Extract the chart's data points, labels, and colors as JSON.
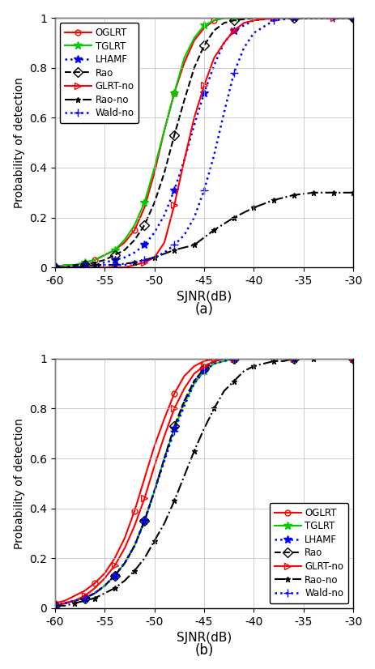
{
  "xlim": [
    -60,
    -30
  ],
  "ylim": [
    0,
    1
  ],
  "xlabel": "SJNR(dB)",
  "ylabel": "Probability of detection",
  "xticks": [
    -60,
    -55,
    -50,
    -45,
    -40,
    -35,
    -30
  ],
  "yticks": [
    0,
    0.2,
    0.4,
    0.6,
    0.8,
    1.0
  ],
  "yticklabels": [
    "0",
    "0.2",
    "0.4",
    "0.6",
    "0.8",
    "1"
  ],
  "subplot_a": {
    "OGLRT": {
      "x": [
        -60,
        -59,
        -58,
        -57,
        -56,
        -55,
        -54,
        -53,
        -52,
        -51,
        -50,
        -49,
        -48,
        -47,
        -46,
        -45,
        -44,
        -43,
        -42,
        -40,
        -38,
        -36,
        -34,
        -32,
        -30
      ],
      "y": [
        0.0,
        0.01,
        0.01,
        0.02,
        0.03,
        0.05,
        0.07,
        0.1,
        0.15,
        0.24,
        0.38,
        0.55,
        0.7,
        0.82,
        0.91,
        0.96,
        0.99,
        1.0,
        1.0,
        1.0,
        1.0,
        1.0,
        1.0,
        1.0,
        1.0
      ],
      "color": "#FF0000",
      "linestyle": "-",
      "marker": "o",
      "markerfacecolor": "none",
      "markersize": 5,
      "linewidth": 1.5,
      "markevery": 4
    },
    "TGLRT": {
      "x": [
        -60,
        -59,
        -58,
        -57,
        -56,
        -55,
        -54,
        -53,
        -52,
        -51,
        -50,
        -49,
        -48,
        -47,
        -46,
        -45,
        -44,
        -43,
        -42,
        -40,
        -38,
        -36,
        -34,
        -32,
        -30
      ],
      "y": [
        0.0,
        0.01,
        0.01,
        0.02,
        0.03,
        0.05,
        0.07,
        0.11,
        0.17,
        0.26,
        0.4,
        0.55,
        0.7,
        0.84,
        0.92,
        0.97,
        0.99,
        1.0,
        1.0,
        1.0,
        1.0,
        1.0,
        1.0,
        1.0,
        1.0
      ],
      "color": "#00CC00",
      "linestyle": "-",
      "marker": "*",
      "markerfacecolor": "#00CC00",
      "markersize": 7,
      "linewidth": 1.5,
      "markevery": 3
    },
    "LHAMF": {
      "x": [
        -60,
        -59,
        -58,
        -57,
        -56,
        -55,
        -54,
        -53,
        -52,
        -51,
        -50,
        -49,
        -48,
        -47,
        -46,
        -45,
        -44,
        -43,
        -42,
        -40,
        -38,
        -36,
        -34,
        -32,
        -30
      ],
      "y": [
        0.0,
        0.0,
        0.0,
        0.01,
        0.01,
        0.02,
        0.03,
        0.04,
        0.06,
        0.09,
        0.14,
        0.21,
        0.31,
        0.43,
        0.57,
        0.7,
        0.81,
        0.9,
        0.95,
        0.99,
        1.0,
        1.0,
        1.0,
        1.0,
        1.0
      ],
      "color": "#0000FF",
      "linestyle": ":",
      "marker": "*",
      "markerfacecolor": "#0000FF",
      "markersize": 7,
      "linewidth": 1.8,
      "markevery": 3
    },
    "Rao": {
      "x": [
        -60,
        -59,
        -58,
        -57,
        -56,
        -55,
        -54,
        -53,
        -52,
        -51,
        -50,
        -49,
        -48,
        -47,
        -46,
        -45,
        -44,
        -43,
        -42,
        -40,
        -38,
        -36,
        -34,
        -32,
        -30
      ],
      "y": [
        0.0,
        0.0,
        0.01,
        0.01,
        0.02,
        0.03,
        0.05,
        0.07,
        0.11,
        0.17,
        0.26,
        0.38,
        0.53,
        0.67,
        0.8,
        0.89,
        0.95,
        0.98,
        0.99,
        1.0,
        1.0,
        1.0,
        1.0,
        1.0,
        1.0
      ],
      "color": "#000000",
      "linestyle": "--",
      "marker": "D",
      "markerfacecolor": "none",
      "markersize": 6,
      "linewidth": 1.5,
      "markevery": 3
    },
    "GLRT-no": {
      "x": [
        -60,
        -58,
        -56,
        -54,
        -53,
        -52,
        -51,
        -50,
        -49,
        -48,
        -47,
        -46,
        -45,
        -44,
        -43,
        -42,
        -41,
        -40,
        -38,
        -36,
        -34,
        -32,
        -30
      ],
      "y": [
        0.0,
        0.0,
        0.0,
        0.0,
        0.0,
        0.01,
        0.02,
        0.04,
        0.1,
        0.25,
        0.43,
        0.6,
        0.73,
        0.84,
        0.9,
        0.95,
        0.98,
        0.99,
        1.0,
        1.0,
        1.0,
        1.0,
        1.0
      ],
      "color": "#FF0000",
      "linestyle": "-",
      "marker": ">",
      "markerfacecolor": "none",
      "markersize": 6,
      "linewidth": 1.5,
      "markevery": 3
    },
    "Rao-no": {
      "x": [
        -60,
        -58,
        -56,
        -54,
        -52,
        -50,
        -48,
        -46,
        -44,
        -42,
        -40,
        -38,
        -36,
        -34,
        -32,
        -30
      ],
      "y": [
        0.0,
        0.0,
        0.01,
        0.01,
        0.02,
        0.04,
        0.07,
        0.09,
        0.15,
        0.2,
        0.24,
        0.27,
        0.29,
        0.3,
        0.3,
        0.3
      ],
      "color": "#000000",
      "linestyle": "-.",
      "marker": "*",
      "markerfacecolor": "#000000",
      "markersize": 5,
      "linewidth": 1.5,
      "markevery": 1
    },
    "Wald-no": {
      "x": [
        -60,
        -59,
        -58,
        -57,
        -56,
        -55,
        -54,
        -53,
        -52,
        -51,
        -50,
        -49,
        -48,
        -47,
        -46,
        -45,
        -44,
        -43,
        -42,
        -41,
        -40,
        -38,
        -36,
        -34,
        -32,
        -30
      ],
      "y": [
        0.0,
        0.0,
        0.0,
        0.0,
        0.0,
        0.01,
        0.01,
        0.01,
        0.02,
        0.03,
        0.04,
        0.06,
        0.09,
        0.13,
        0.2,
        0.31,
        0.45,
        0.62,
        0.78,
        0.88,
        0.94,
        0.99,
        1.0,
        1.0,
        1.0,
        1.0
      ],
      "color": "#0000FF",
      "linestyle": ":",
      "marker": "+",
      "markerfacecolor": "#0000FF",
      "markersize": 7,
      "linewidth": 1.8,
      "markevery": 3
    }
  },
  "subplot_b": {
    "OGLRT": {
      "x": [
        -60,
        -59,
        -58,
        -57,
        -56,
        -55,
        -54,
        -53,
        -52,
        -51,
        -50,
        -49,
        -48,
        -47,
        -46,
        -45,
        -44,
        -43,
        -42,
        -40,
        -38,
        -36,
        -34,
        -32,
        -30
      ],
      "y": [
        0.02,
        0.03,
        0.05,
        0.07,
        0.1,
        0.14,
        0.2,
        0.28,
        0.39,
        0.52,
        0.65,
        0.76,
        0.86,
        0.93,
        0.97,
        0.99,
        1.0,
        1.0,
        1.0,
        1.0,
        1.0,
        1.0,
        1.0,
        1.0,
        1.0
      ],
      "color": "#FF0000",
      "linestyle": "-",
      "marker": "o",
      "markerfacecolor": "none",
      "markersize": 5,
      "linewidth": 1.5,
      "markevery": 4
    },
    "TGLRT": {
      "x": [
        -60,
        -59,
        -58,
        -57,
        -56,
        -55,
        -54,
        -53,
        -52,
        -51,
        -50,
        -49,
        -48,
        -47,
        -46,
        -45,
        -44,
        -43,
        -42,
        -40,
        -38,
        -36,
        -34,
        -32,
        -30
      ],
      "y": [
        0.01,
        0.02,
        0.03,
        0.04,
        0.06,
        0.09,
        0.13,
        0.18,
        0.25,
        0.35,
        0.47,
        0.6,
        0.72,
        0.82,
        0.9,
        0.95,
        0.98,
        0.99,
        1.0,
        1.0,
        1.0,
        1.0,
        1.0,
        1.0,
        1.0
      ],
      "color": "#00CC00",
      "linestyle": "-",
      "marker": "*",
      "markerfacecolor": "#00CC00",
      "markersize": 7,
      "linewidth": 1.5,
      "markevery": 3
    },
    "LHAMF": {
      "x": [
        -60,
        -59,
        -58,
        -57,
        -56,
        -55,
        -54,
        -53,
        -52,
        -51,
        -50,
        -49,
        -48,
        -47,
        -46,
        -45,
        -44,
        -43,
        -42,
        -40,
        -38,
        -36,
        -34,
        -32,
        -30
      ],
      "y": [
        0.01,
        0.02,
        0.03,
        0.04,
        0.06,
        0.09,
        0.13,
        0.18,
        0.25,
        0.35,
        0.47,
        0.6,
        0.72,
        0.83,
        0.91,
        0.96,
        0.99,
        1.0,
        1.0,
        1.0,
        1.0,
        1.0,
        1.0,
        1.0,
        1.0
      ],
      "color": "#0000FF",
      "linestyle": ":",
      "marker": "*",
      "markerfacecolor": "#0000FF",
      "markersize": 7,
      "linewidth": 1.8,
      "markevery": 3
    },
    "Rao": {
      "x": [
        -60,
        -59,
        -58,
        -57,
        -56,
        -55,
        -54,
        -53,
        -52,
        -51,
        -50,
        -49,
        -48,
        -47,
        -46,
        -45,
        -44,
        -43,
        -42,
        -40,
        -38,
        -36,
        -34,
        -32,
        -30
      ],
      "y": [
        0.01,
        0.02,
        0.03,
        0.04,
        0.06,
        0.09,
        0.13,
        0.18,
        0.25,
        0.35,
        0.47,
        0.6,
        0.73,
        0.83,
        0.91,
        0.96,
        0.99,
        1.0,
        1.0,
        1.0,
        1.0,
        1.0,
        1.0,
        1.0,
        1.0
      ],
      "color": "#000000",
      "linestyle": "--",
      "marker": "D",
      "markerfacecolor": "none",
      "markersize": 6,
      "linewidth": 1.5,
      "markevery": 3
    },
    "GLRT-no": {
      "x": [
        -60,
        -59,
        -58,
        -57,
        -56,
        -55,
        -54,
        -53,
        -52,
        -51,
        -50,
        -49,
        -48,
        -47,
        -46,
        -45,
        -44,
        -43,
        -42,
        -40,
        -38,
        -36,
        -34,
        -32,
        -30
      ],
      "y": [
        0.01,
        0.02,
        0.03,
        0.05,
        0.08,
        0.12,
        0.17,
        0.24,
        0.33,
        0.44,
        0.57,
        0.69,
        0.8,
        0.88,
        0.94,
        0.97,
        0.99,
        1.0,
        1.0,
        1.0,
        1.0,
        1.0,
        1.0,
        1.0,
        1.0
      ],
      "color": "#FF0000",
      "linestyle": "-",
      "marker": ">",
      "markerfacecolor": "none",
      "markersize": 6,
      "linewidth": 1.5,
      "markevery": 3
    },
    "Rao-no": {
      "x": [
        -60,
        -59,
        -58,
        -57,
        -56,
        -55,
        -54,
        -53,
        -52,
        -51,
        -50,
        -49,
        -48,
        -47,
        -46,
        -45,
        -44,
        -43,
        -42,
        -41,
        -40,
        -39,
        -38,
        -37,
        -36,
        -35,
        -34,
        -32,
        -30
      ],
      "y": [
        0.01,
        0.01,
        0.02,
        0.03,
        0.04,
        0.06,
        0.08,
        0.11,
        0.15,
        0.2,
        0.27,
        0.34,
        0.43,
        0.53,
        0.63,
        0.72,
        0.8,
        0.87,
        0.91,
        0.95,
        0.97,
        0.98,
        0.99,
        0.99,
        1.0,
        1.0,
        1.0,
        1.0,
        1.0
      ],
      "color": "#000000",
      "linestyle": "-.",
      "marker": "*",
      "markerfacecolor": "#000000",
      "markersize": 5,
      "linewidth": 1.5,
      "markevery": 2
    },
    "Wald-no": {
      "x": [
        -60,
        -59,
        -58,
        -57,
        -56,
        -55,
        -54,
        -53,
        -52,
        -51,
        -50,
        -49,
        -48,
        -47,
        -46,
        -45,
        -44,
        -43,
        -42,
        -40,
        -38,
        -36,
        -34,
        -32,
        -30
      ],
      "y": [
        0.01,
        0.02,
        0.03,
        0.04,
        0.06,
        0.09,
        0.13,
        0.18,
        0.25,
        0.35,
        0.47,
        0.59,
        0.71,
        0.81,
        0.9,
        0.95,
        0.98,
        0.99,
        1.0,
        1.0,
        1.0,
        1.0,
        1.0,
        1.0,
        1.0
      ],
      "color": "#0000FF",
      "linestyle": ":",
      "marker": "+",
      "markerfacecolor": "#0000FF",
      "markersize": 7,
      "linewidth": 1.8,
      "markevery": 3
    }
  },
  "legend_order_a": [
    "OGLRT",
    "TGLRT",
    "LHAMF",
    "Rao",
    "GLRT-no",
    "Rao-no",
    "Wald-no"
  ],
  "legend_order_b": [
    "OGLRT",
    "TGLRT",
    "LHAMF",
    "Rao",
    "GLRT-no",
    "Rao-no",
    "Wald-no"
  ],
  "legend_loc_a": "upper left",
  "legend_loc_b": "lower right"
}
